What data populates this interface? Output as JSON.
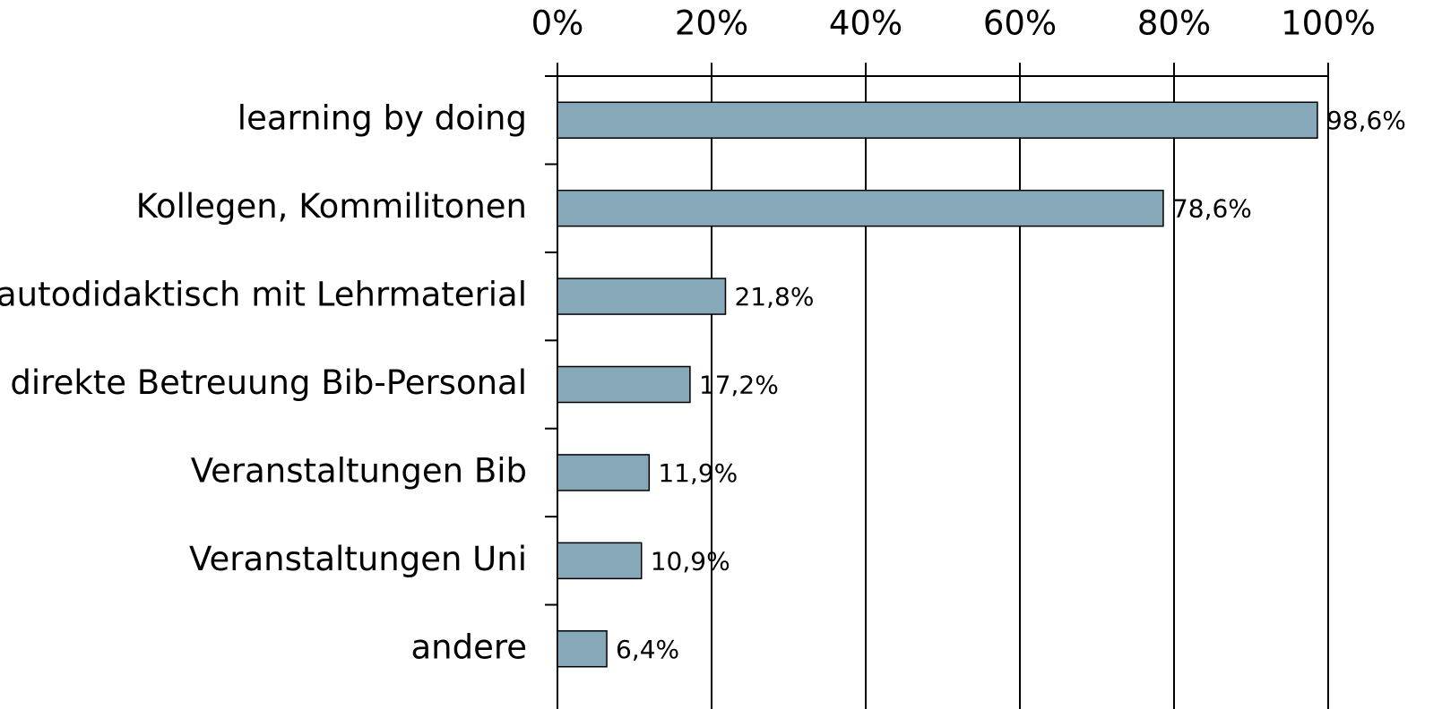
{
  "chart_data": {
    "type": "bar",
    "orientation": "horizontal",
    "categories": [
      "learning by doing",
      "Kollegen, Kommilitonen",
      "autodidaktisch mit Lehrmaterial",
      "direkte Betreuung Bib-Personal",
      "Veranstaltungen Bib",
      "Veranstaltungen Uni",
      "andere"
    ],
    "values": [
      98.6,
      78.6,
      21.8,
      17.2,
      11.9,
      10.9,
      6.4
    ],
    "value_labels": [
      "98,6%",
      "78,6%",
      "21,8%",
      "17,2%",
      "11,9%",
      "10,9%",
      "6,4%"
    ],
    "color": "#87a8b9",
    "xlim": [
      0,
      100
    ],
    "xticks": [
      {
        "value": 0,
        "label": "0%"
      },
      {
        "value": 20,
        "label": "20%"
      },
      {
        "value": 40,
        "label": "40%"
      },
      {
        "value": 60,
        "label": "60%"
      },
      {
        "value": 80,
        "label": "80%"
      },
      {
        "value": 100,
        "label": "100%"
      }
    ],
    "grid": true
  }
}
